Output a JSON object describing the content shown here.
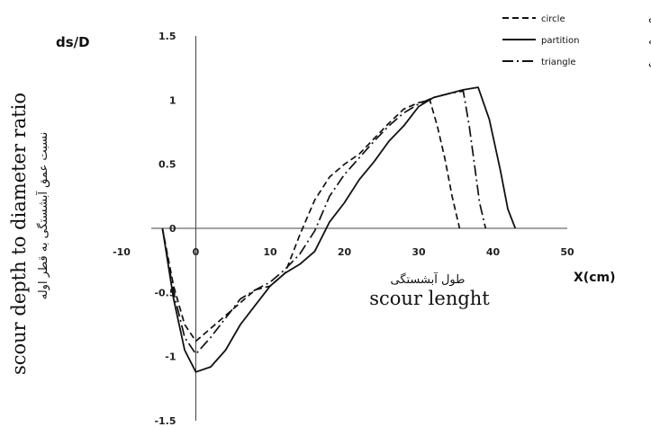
{
  "chart_data": {
    "type": "line",
    "ylabel_corner": "ds/D",
    "xlabel_corner": "X(cm)",
    "xlabel_en": "scour lenght",
    "xlabel_fa": "طول آبشستگی",
    "ylabel_en": "scour depth to diameter ratio",
    "ylabel_fa": "نسبت عمق آبشستگی به قطر اوله",
    "xlim": [
      -10,
      50
    ],
    "ylim": [
      -1.5,
      1.5
    ],
    "x_ticks": [
      -10,
      0,
      10,
      20,
      30,
      40,
      50
    ],
    "y_ticks": [
      -1.5,
      -1,
      -0.5,
      0,
      0.5,
      1,
      1.5
    ],
    "x_tick_labels": [
      "-10",
      "0",
      "10",
      "20",
      "30",
      "40",
      "50"
    ],
    "y_tick_labels": [
      "-1.5",
      "-1",
      "-0.5",
      "0",
      "0.5",
      "1",
      "1.5"
    ],
    "grid": false,
    "legend_position": "top-right",
    "series": [
      {
        "name": "circle",
        "name_fa": "دایره",
        "style": "dashed",
        "color": "#111111",
        "x": [
          -4.5,
          -3,
          -1.5,
          0,
          2,
          4,
          6,
          8,
          10,
          12,
          14,
          16,
          18,
          20,
          22,
          24,
          26,
          28,
          30,
          31.5,
          32.5,
          33.5,
          34.5,
          35.5
        ],
        "y": [
          0,
          -0.45,
          -0.75,
          -0.88,
          -0.78,
          -0.68,
          -0.58,
          -0.48,
          -0.45,
          -0.35,
          -0.05,
          0.22,
          0.4,
          0.5,
          0.58,
          0.7,
          0.82,
          0.93,
          0.98,
          1.0,
          0.8,
          0.55,
          0.25,
          0
        ]
      },
      {
        "name": "partition",
        "name_fa": "باله",
        "style": "solid",
        "color": "#111111",
        "x": [
          -4.5,
          -3,
          -1.5,
          0,
          2,
          4,
          6,
          8,
          10,
          12,
          14,
          16,
          18,
          20,
          22,
          24,
          26,
          28,
          30,
          32,
          34,
          36,
          38,
          39.5,
          41,
          42,
          43
        ],
        "y": [
          0,
          -0.55,
          -0.95,
          -1.12,
          -1.08,
          -0.95,
          -0.75,
          -0.6,
          -0.45,
          -0.35,
          -0.28,
          -0.18,
          0.05,
          0.2,
          0.38,
          0.52,
          0.68,
          0.8,
          0.95,
          1.02,
          1.05,
          1.08,
          1.1,
          0.85,
          0.45,
          0.15,
          0
        ]
      },
      {
        "name": "triangle",
        "name_fa": "مثلثی",
        "style": "dash-dot",
        "color": "#111111",
        "x": [
          -4.5,
          -3,
          -1.5,
          0,
          2,
          4,
          6,
          8,
          10,
          12,
          14,
          16,
          18,
          20,
          22,
          24,
          26,
          28,
          30,
          32,
          34,
          36,
          36.8,
          37.5,
          38.2,
          39
        ],
        "y": [
          0,
          -0.5,
          -0.85,
          -0.98,
          -0.85,
          -0.7,
          -0.55,
          -0.48,
          -0.42,
          -0.32,
          -0.2,
          -0.02,
          0.25,
          0.42,
          0.55,
          0.68,
          0.8,
          0.9,
          0.97,
          1.02,
          1.05,
          1.07,
          0.8,
          0.5,
          0.2,
          0
        ]
      }
    ]
  }
}
